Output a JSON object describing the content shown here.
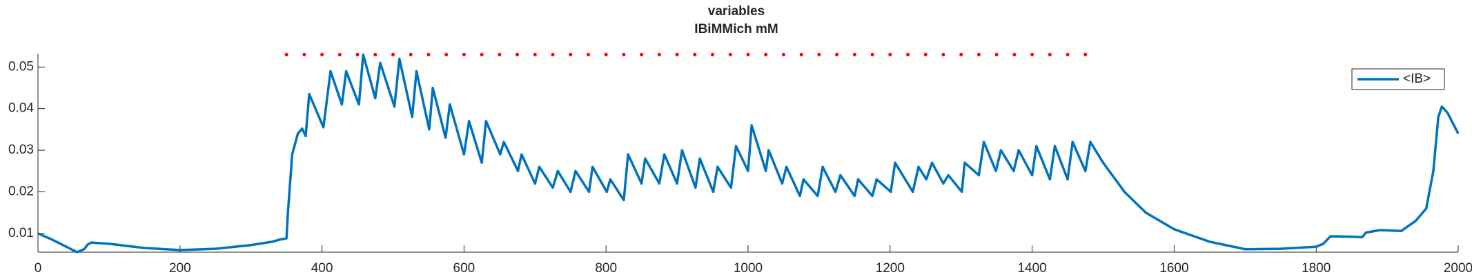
{
  "chart_data": {
    "type": "line",
    "title": "variables",
    "subtitle": "IBiMMich mM",
    "x": [
      0,
      20,
      40,
      55,
      65,
      70,
      75,
      100,
      150,
      200,
      250,
      300,
      330,
      340,
      350,
      352,
      358,
      366,
      372,
      377,
      382,
      402,
      412,
      428,
      434,
      452,
      458,
      475,
      482,
      502,
      509,
      527,
      533,
      551,
      556,
      574,
      580,
      600,
      607,
      625,
      631,
      651,
      656,
      676,
      681,
      700,
      706,
      725,
      732,
      750,
      757,
      776,
      781,
      801,
      806,
      825,
      831,
      850,
      855,
      875,
      882,
      900,
      907,
      926,
      932,
      951,
      957,
      976,
      983,
      1000,
      1005,
      1025,
      1029,
      1048,
      1054,
      1073,
      1078,
      1098,
      1105,
      1123,
      1130,
      1150,
      1155,
      1175,
      1181,
      1201,
      1207,
      1232,
      1240,
      1251,
      1259,
      1275,
      1282,
      1301,
      1305,
      1325,
      1332,
      1349,
      1356,
      1374,
      1381,
      1400,
      1406,
      1425,
      1432,
      1450,
      1457,
      1475,
      1482,
      1500,
      1530,
      1560,
      1600,
      1650,
      1700,
      1750,
      1800,
      1810,
      1820,
      1850,
      1865,
      1870,
      1890,
      1920,
      1940,
      1955,
      1965,
      1972,
      1977,
      1985,
      2000
    ],
    "series": [
      {
        "name": "<IB>",
        "color": "#0072bd",
        "values": [
          0.01,
          0.0085,
          0.0068,
          0.0055,
          0.0062,
          0.0073,
          0.0078,
          0.0075,
          0.0065,
          0.006,
          0.0063,
          0.0072,
          0.008,
          0.0085,
          0.0088,
          0.015,
          0.029,
          0.034,
          0.0352,
          0.0334,
          0.0435,
          0.0355,
          0.049,
          0.041,
          0.049,
          0.041,
          0.053,
          0.0425,
          0.051,
          0.0405,
          0.052,
          0.038,
          0.049,
          0.035,
          0.045,
          0.033,
          0.041,
          0.029,
          0.037,
          0.027,
          0.037,
          0.029,
          0.032,
          0.025,
          0.029,
          0.022,
          0.026,
          0.021,
          0.025,
          0.02,
          0.025,
          0.02,
          0.026,
          0.02,
          0.023,
          0.018,
          0.029,
          0.022,
          0.028,
          0.022,
          0.029,
          0.022,
          0.03,
          0.021,
          0.028,
          0.02,
          0.026,
          0.021,
          0.031,
          0.025,
          0.036,
          0.025,
          0.03,
          0.022,
          0.026,
          0.019,
          0.023,
          0.019,
          0.026,
          0.02,
          0.024,
          0.019,
          0.023,
          0.019,
          0.023,
          0.02,
          0.027,
          0.02,
          0.026,
          0.023,
          0.027,
          0.022,
          0.024,
          0.02,
          0.027,
          0.024,
          0.032,
          0.025,
          0.03,
          0.025,
          0.03,
          0.024,
          0.031,
          0.023,
          0.031,
          0.023,
          0.032,
          0.025,
          0.032,
          0.027,
          0.02,
          0.015,
          0.011,
          0.008,
          0.0062,
          0.0063,
          0.0068,
          0.0075,
          0.0093,
          0.0092,
          0.0091,
          0.0102,
          0.0108,
          0.0106,
          0.013,
          0.016,
          0.025,
          0.038,
          0.0405,
          0.039,
          0.034
        ]
      }
    ],
    "markers": {
      "color": "#ff0000",
      "x": [
        350,
        375,
        400,
        425,
        450,
        475,
        500,
        525,
        550,
        575,
        600,
        625,
        650,
        675,
        700,
        725,
        750,
        775,
        800,
        825,
        850,
        875,
        900,
        925,
        950,
        975,
        1000,
        1025,
        1050,
        1075,
        1100,
        1125,
        1150,
        1175,
        1200,
        1225,
        1250,
        1275,
        1300,
        1325,
        1350,
        1375,
        1400,
        1425,
        1450,
        1475
      ],
      "values": [
        0.053,
        0.053,
        0.053,
        0.053,
        0.053,
        0.053,
        0.053,
        0.053,
        0.053,
        0.053,
        0.053,
        0.053,
        0.053,
        0.053,
        0.053,
        0.053,
        0.053,
        0.053,
        0.053,
        0.053,
        0.053,
        0.053,
        0.053,
        0.053,
        0.053,
        0.053,
        0.053,
        0.053,
        0.053,
        0.053,
        0.053,
        0.053,
        0.053,
        0.053,
        0.053,
        0.053,
        0.053,
        0.053,
        0.053,
        0.053,
        0.053,
        0.053,
        0.053,
        0.053,
        0.053,
        0.053
      ]
    },
    "xlim": [
      0,
      2000
    ],
    "xticks": [
      0,
      200,
      400,
      600,
      800,
      1000,
      1200,
      1400,
      1600,
      1800,
      2000
    ],
    "ylim": [
      0.0055,
      0.0532
    ],
    "yticks": [
      0.01,
      0.02,
      0.03,
      0.04,
      0.05
    ],
    "grid": false,
    "legend": "upper right"
  }
}
